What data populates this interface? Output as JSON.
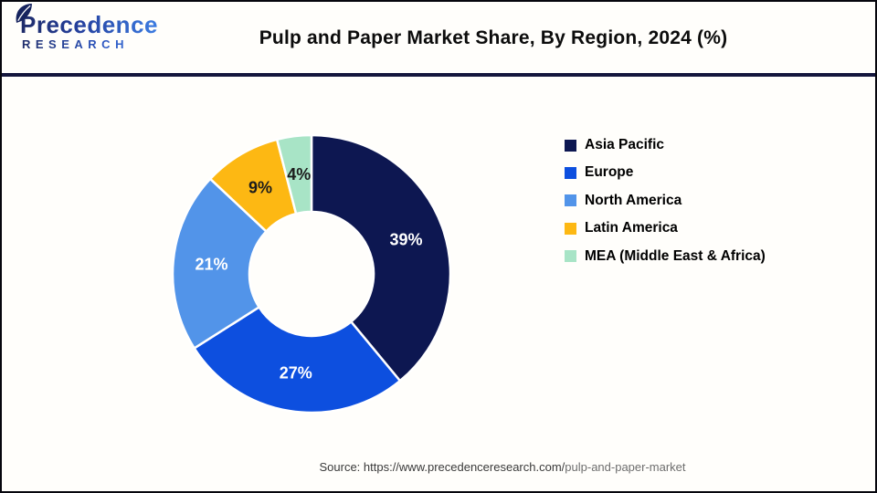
{
  "header": {
    "logo": {
      "name": "Precedence",
      "subname": "RESEARCH",
      "icon": "leaf-icon"
    },
    "title": "Pulp and Paper Market Share, By Region, 2024 (%)"
  },
  "chart_data": {
    "type": "pie",
    "subtype": "donut",
    "title": "Pulp and Paper Market Share, By Region, 2024 (%)",
    "unit": "%",
    "start_angle_deg": 0,
    "direction": "clockwise",
    "inner_radius_ratio": 0.45,
    "legend_position": "right",
    "slices": [
      {
        "label": "Asia Pacific",
        "value": 39,
        "display": "39%",
        "color": "#0d1751",
        "label_color": "#ffffff"
      },
      {
        "label": "Europe",
        "value": 27,
        "display": "27%",
        "color": "#0d4fdf",
        "label_color": "#ffffff"
      },
      {
        "label": "North America",
        "value": 21,
        "display": "21%",
        "color": "#5294e9",
        "label_color": "#ffffff"
      },
      {
        "label": "Latin America",
        "value": 9,
        "display": "9%",
        "color": "#fdb813",
        "label_color": "#1c1c1c"
      },
      {
        "label": "MEA (Middle East & Africa)",
        "value": 4,
        "display": "4%",
        "color": "#a8e4c6",
        "label_color": "#1c1c1c"
      }
    ]
  },
  "source": {
    "prefix": "Source: https://www.precedenceresearch.com/",
    "path": "pulp-and-paper-market"
  },
  "colors": {
    "header_divider": "#14163d",
    "page_border": "#06060d",
    "background": "#fffefb"
  }
}
